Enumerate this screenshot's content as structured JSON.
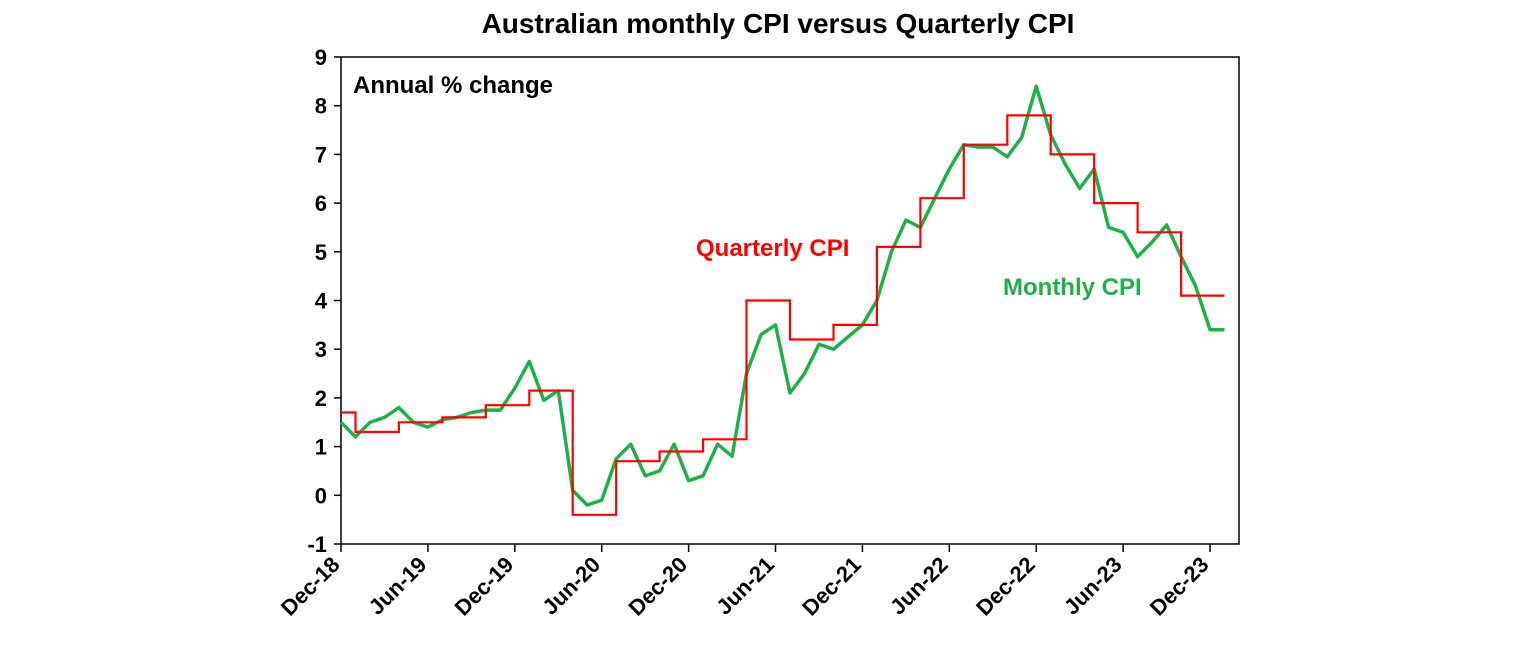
{
  "chart_data": {
    "type": "line",
    "title": "Australian monthly CPI versus Quarterly CPI",
    "ylabel": "Annual % change",
    "xlabel": "",
    "ylim": [
      -1,
      9
    ],
    "yticks": [
      -1,
      0,
      1,
      2,
      3,
      4,
      5,
      6,
      7,
      8,
      9
    ],
    "x_start": "2018-12",
    "x_end": "2024-02",
    "xtick_labels": [
      "Dec-18",
      "Jun-19",
      "Dec-19",
      "Jun-20",
      "Dec-20",
      "Jun-21",
      "Dec-21",
      "Jun-22",
      "Dec-22",
      "Jun-23",
      "Dec-23"
    ],
    "grid": false,
    "series": [
      {
        "name": "Quarterly CPI",
        "color": "#ff0000",
        "points": [
          [
            "2018-12",
            1.7
          ],
          [
            "2019-01",
            1.3
          ],
          [
            "2019-02",
            1.3
          ],
          [
            "2019-03",
            1.3
          ],
          [
            "2019-04",
            1.5
          ],
          [
            "2019-05",
            1.5
          ],
          [
            "2019-06",
            1.5
          ],
          [
            "2019-07",
            1.6
          ],
          [
            "2019-08",
            1.6
          ],
          [
            "2019-09",
            1.6
          ],
          [
            "2019-10",
            1.85
          ],
          [
            "2019-11",
            1.85
          ],
          [
            "2019-12",
            1.85
          ],
          [
            "2020-01",
            2.15
          ],
          [
            "2020-02",
            2.15
          ],
          [
            "2020-03",
            2.15
          ],
          [
            "2020-04",
            -0.4
          ],
          [
            "2020-05",
            -0.4
          ],
          [
            "2020-06",
            -0.4
          ],
          [
            "2020-07",
            0.7
          ],
          [
            "2020-08",
            0.7
          ],
          [
            "2020-09",
            0.7
          ],
          [
            "2020-10",
            0.9
          ],
          [
            "2020-11",
            0.9
          ],
          [
            "2020-12",
            0.9
          ],
          [
            "2021-01",
            1.15
          ],
          [
            "2021-02",
            1.15
          ],
          [
            "2021-03",
            1.15
          ],
          [
            "2021-04",
            4.0
          ],
          [
            "2021-05",
            4.0
          ],
          [
            "2021-06",
            4.0
          ],
          [
            "2021-07",
            3.2
          ],
          [
            "2021-08",
            3.2
          ],
          [
            "2021-09",
            3.2
          ],
          [
            "2021-10",
            3.5
          ],
          [
            "2021-11",
            3.5
          ],
          [
            "2021-12",
            3.5
          ],
          [
            "2022-01",
            5.1
          ],
          [
            "2022-02",
            5.1
          ],
          [
            "2022-03",
            5.1
          ],
          [
            "2022-04",
            6.1
          ],
          [
            "2022-05",
            6.1
          ],
          [
            "2022-06",
            6.1
          ],
          [
            "2022-07",
            7.2
          ],
          [
            "2022-08",
            7.2
          ],
          [
            "2022-09",
            7.2
          ],
          [
            "2022-10",
            7.8
          ],
          [
            "2022-11",
            7.8
          ],
          [
            "2022-12",
            7.8
          ],
          [
            "2023-01",
            7.0
          ],
          [
            "2023-02",
            7.0
          ],
          [
            "2023-03",
            7.0
          ],
          [
            "2023-04",
            6.0
          ],
          [
            "2023-05",
            6.0
          ],
          [
            "2023-06",
            6.0
          ],
          [
            "2023-07",
            5.4
          ],
          [
            "2023-08",
            5.4
          ],
          [
            "2023-09",
            5.4
          ],
          [
            "2023-10",
            4.1
          ],
          [
            "2023-11",
            4.1
          ],
          [
            "2023-12",
            4.1
          ]
        ]
      },
      {
        "name": "Monthly CPI",
        "color": "#1fb04b",
        "points": [
          [
            "2018-12",
            1.5
          ],
          [
            "2019-01",
            1.2
          ],
          [
            "2019-02",
            1.5
          ],
          [
            "2019-03",
            1.6
          ],
          [
            "2019-04",
            1.8
          ],
          [
            "2019-05",
            1.5
          ],
          [
            "2019-06",
            1.4
          ],
          [
            "2019-07",
            1.55
          ],
          [
            "2019-08",
            1.6
          ],
          [
            "2019-09",
            1.7
          ],
          [
            "2019-10",
            1.75
          ],
          [
            "2019-11",
            1.75
          ],
          [
            "2019-12",
            2.2
          ],
          [
            "2020-01",
            2.75
          ],
          [
            "2020-02",
            1.95
          ],
          [
            "2020-03",
            2.15
          ],
          [
            "2020-04",
            0.1
          ],
          [
            "2020-05",
            -0.2
          ],
          [
            "2020-06",
            -0.1
          ],
          [
            "2020-07",
            0.75
          ],
          [
            "2020-08",
            1.05
          ],
          [
            "2020-09",
            0.4
          ],
          [
            "2020-10",
            0.5
          ],
          [
            "2020-11",
            1.05
          ],
          [
            "2020-12",
            0.3
          ],
          [
            "2021-01",
            0.4
          ],
          [
            "2021-02",
            1.05
          ],
          [
            "2021-03",
            0.8
          ],
          [
            "2021-04",
            2.5
          ],
          [
            "2021-05",
            3.3
          ],
          [
            "2021-06",
            3.5
          ],
          [
            "2021-07",
            2.1
          ],
          [
            "2021-08",
            2.5
          ],
          [
            "2021-09",
            3.1
          ],
          [
            "2021-10",
            3.0
          ],
          [
            "2021-11",
            3.25
          ],
          [
            "2021-12",
            3.5
          ],
          [
            "2022-01",
            4.0
          ],
          [
            "2022-02",
            5.0
          ],
          [
            "2022-03",
            5.65
          ],
          [
            "2022-04",
            5.5
          ],
          [
            "2022-05",
            6.1
          ],
          [
            "2022-06",
            6.7
          ],
          [
            "2022-07",
            7.2
          ],
          [
            "2022-08",
            7.15
          ],
          [
            "2022-09",
            7.15
          ],
          [
            "2022-10",
            6.95
          ],
          [
            "2022-11",
            7.35
          ],
          [
            "2022-12",
            8.4
          ],
          [
            "2023-01",
            7.4
          ],
          [
            "2023-02",
            6.8
          ],
          [
            "2023-03",
            6.3
          ],
          [
            "2023-04",
            6.7
          ],
          [
            "2023-05",
            5.5
          ],
          [
            "2023-06",
            5.4
          ],
          [
            "2023-07",
            4.9
          ],
          [
            "2023-08",
            5.2
          ],
          [
            "2023-09",
            5.55
          ],
          [
            "2023-10",
            4.9
          ],
          [
            "2023-11",
            4.3
          ],
          [
            "2023-12",
            3.4
          ],
          [
            "2024-01",
            3.4
          ]
        ]
      }
    ],
    "annotations": [
      {
        "text": "Quarterly CPI",
        "color": "#ff0000",
        "near_x": "2021-01",
        "near_y": 5.1
      },
      {
        "text": "Monthly CPI",
        "color": "#1fb04b",
        "near_x": "2023-04",
        "near_y": 4.3
      }
    ]
  }
}
